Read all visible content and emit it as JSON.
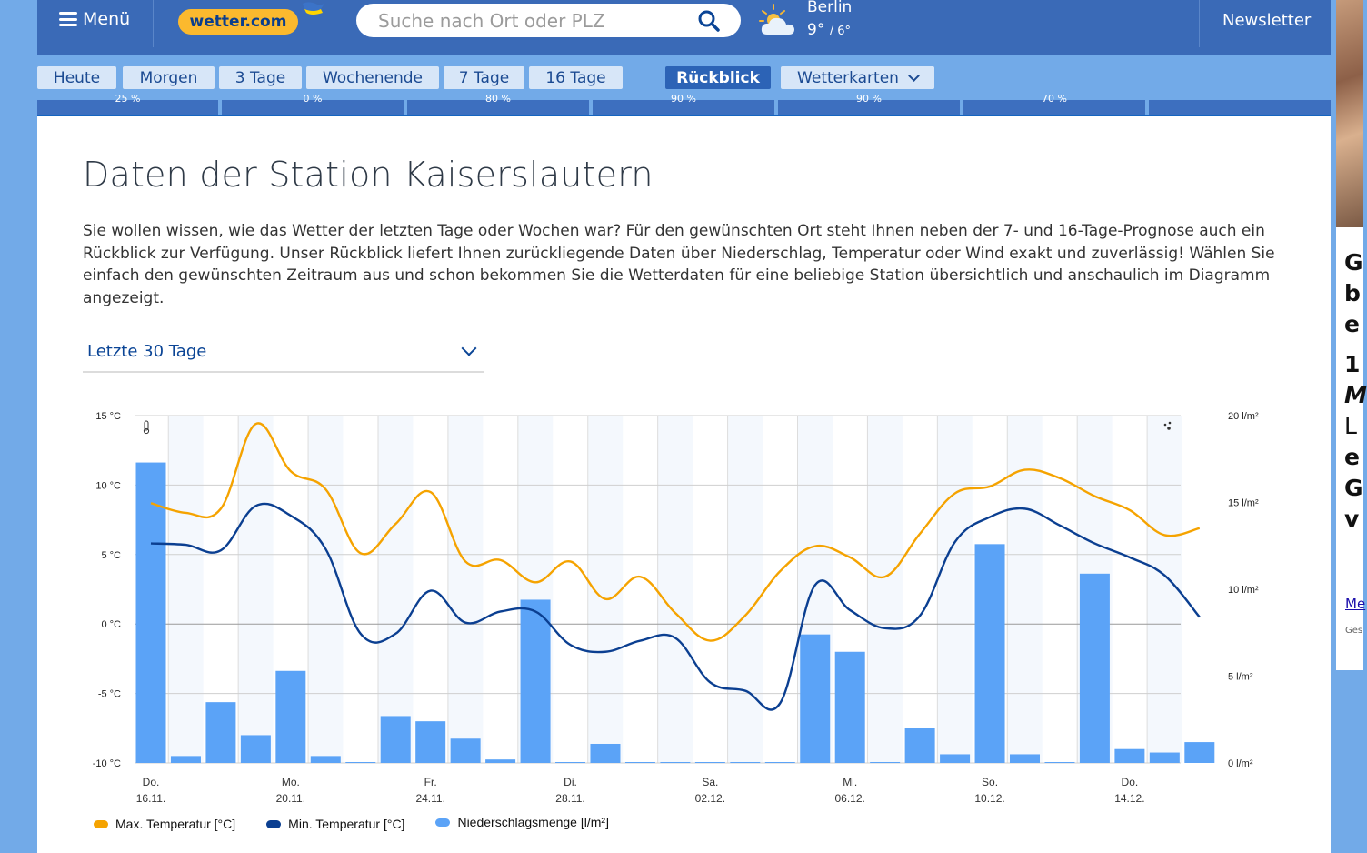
{
  "header": {
    "menu_label": "Menü",
    "logo_text": "wetter.com",
    "search_placeholder": "Suche nach Ort oder PLZ",
    "current_city": "Berlin",
    "current_high": "9°",
    "current_low": "/ 6°",
    "newsletter_label": "Newsletter"
  },
  "tabs": [
    {
      "label": "Heute"
    },
    {
      "label": "Morgen"
    },
    {
      "label": "3 Tage"
    },
    {
      "label": "Wochenende"
    },
    {
      "label": "7 Tage"
    },
    {
      "label": "16 Tage"
    },
    {
      "label": "Rückblick",
      "active": true
    },
    {
      "label": "Wetterkarten",
      "dropdown": true
    }
  ],
  "forecast_strip": [
    "25 %",
    "0 %",
    "80 %",
    "90 %",
    "90 %",
    "70 %",
    ""
  ],
  "main": {
    "title": "Daten der Station Kaiserslautern",
    "intro": "Sie wollen wissen, wie das Wetter der letzten Tage oder Wochen war? Für den gewünschten Ort steht Ihnen neben der 7- und 16-Tage-Prognose auch ein Rückblick zur Verfügung. Unser Rückblick liefert Ihnen zurückliegende Daten über Niederschlag, Temperatur oder Wind exakt und zuverlässig! Wählen Sie einfach den gewünschten Zeitraum aus und schon bekommen Sie die Wetterdaten für eine beliebige Station übersichtlich und anschaulich im Diagramm angezeigt.",
    "period_select": "Letzte 30 Tage"
  },
  "colors": {
    "max_temp": "#f5a300",
    "min_temp": "#0b3f91",
    "precip": "#5ba3f7",
    "header_bg": "#3a6ab7",
    "page_bg": "#72aae8"
  },
  "chart_data": {
    "type": "bar+line",
    "title": "",
    "left_axis": {
      "unit": "°C",
      "range": [
        -10,
        15
      ],
      "ticks": [
        "15 °C",
        "10 °C",
        "5 °C",
        "0 °C",
        "-5 °C",
        "-10 °C"
      ],
      "tick_values": [
        15,
        10,
        5,
        0,
        -5,
        -10
      ]
    },
    "right_axis": {
      "unit": "l/m²",
      "range": [
        0,
        20
      ],
      "ticks": [
        "20 l/m²",
        "15 l/m²",
        "10 l/m²",
        "5 l/m²",
        "0 l/m²"
      ],
      "tick_values": [
        20,
        15,
        10,
        5,
        0
      ]
    },
    "x_labels": [
      {
        "day": "Do.",
        "date": "16.11.",
        "index": 0
      },
      {
        "day": "Mo.",
        "date": "20.11.",
        "index": 4
      },
      {
        "day": "Fr.",
        "date": "24.11.",
        "index": 8
      },
      {
        "day": "Di.",
        "date": "28.11.",
        "index": 12
      },
      {
        "day": "Sa.",
        "date": "02.12.",
        "index": 16
      },
      {
        "day": "Mi.",
        "date": "06.12.",
        "index": 20
      },
      {
        "day": "So.",
        "date": "10.12.",
        "index": 24
      },
      {
        "day": "Do.",
        "date": "14.12.",
        "index": 28
      }
    ],
    "days": 31,
    "grid": true,
    "legend_position": "bottom-left",
    "series": [
      {
        "name": "Max. Temperatur [°C]",
        "type": "line",
        "axis": "left",
        "values": [
          8.7,
          8.0,
          8.3,
          14.4,
          11.0,
          9.7,
          5.1,
          7.2,
          9.5,
          4.5,
          4.6,
          3.0,
          4.5,
          1.8,
          3.4,
          0.8,
          -1.2,
          0.6,
          3.8,
          5.6,
          4.8,
          3.4,
          6.5,
          9.4,
          9.9,
          11.1,
          10.5,
          9.2,
          8.2,
          6.4,
          6.9
        ]
      },
      {
        "name": "Min. Temperatur [°C]",
        "type": "line",
        "axis": "left",
        "values": [
          5.8,
          5.7,
          5.3,
          8.5,
          7.8,
          5.4,
          -0.7,
          -0.7,
          2.4,
          0.1,
          0.9,
          0.9,
          -1.5,
          -2.0,
          -1.2,
          -1.0,
          -4.2,
          -4.8,
          -5.7,
          2.8,
          1.0,
          -0.3,
          0.6,
          5.9,
          7.7,
          8.3,
          7.1,
          5.8,
          4.8,
          3.5,
          0.5
        ]
      },
      {
        "name": "Niederschlagsmenge [l/m²]",
        "type": "bar",
        "axis": "right",
        "values": [
          17.3,
          0.4,
          3.5,
          1.6,
          5.3,
          0.4,
          0.0,
          2.7,
          2.4,
          1.4,
          0.2,
          9.4,
          0.0,
          1.1,
          0.0,
          0.0,
          0.0,
          0.0,
          0.0,
          7.4,
          6.4,
          0.0,
          2.0,
          0.5,
          12.6,
          0.5,
          0.0,
          10.9,
          0.8,
          0.6,
          1.2
        ]
      }
    ],
    "icons": {
      "left": "thermometer-icon",
      "right": "raindrops-icon"
    }
  },
  "legend": [
    {
      "label": "Max. Temperatur [°C]"
    },
    {
      "label": "Min. Temperatur [°C]"
    },
    {
      "label": "Niederschlagsmenge [l/m²]"
    }
  ],
  "ad": {
    "lines": [
      "G",
      "b",
      "e",
      "1",
      "M",
      "L",
      "e",
      "G",
      "v"
    ],
    "link": "Me",
    "small": "Ges"
  }
}
